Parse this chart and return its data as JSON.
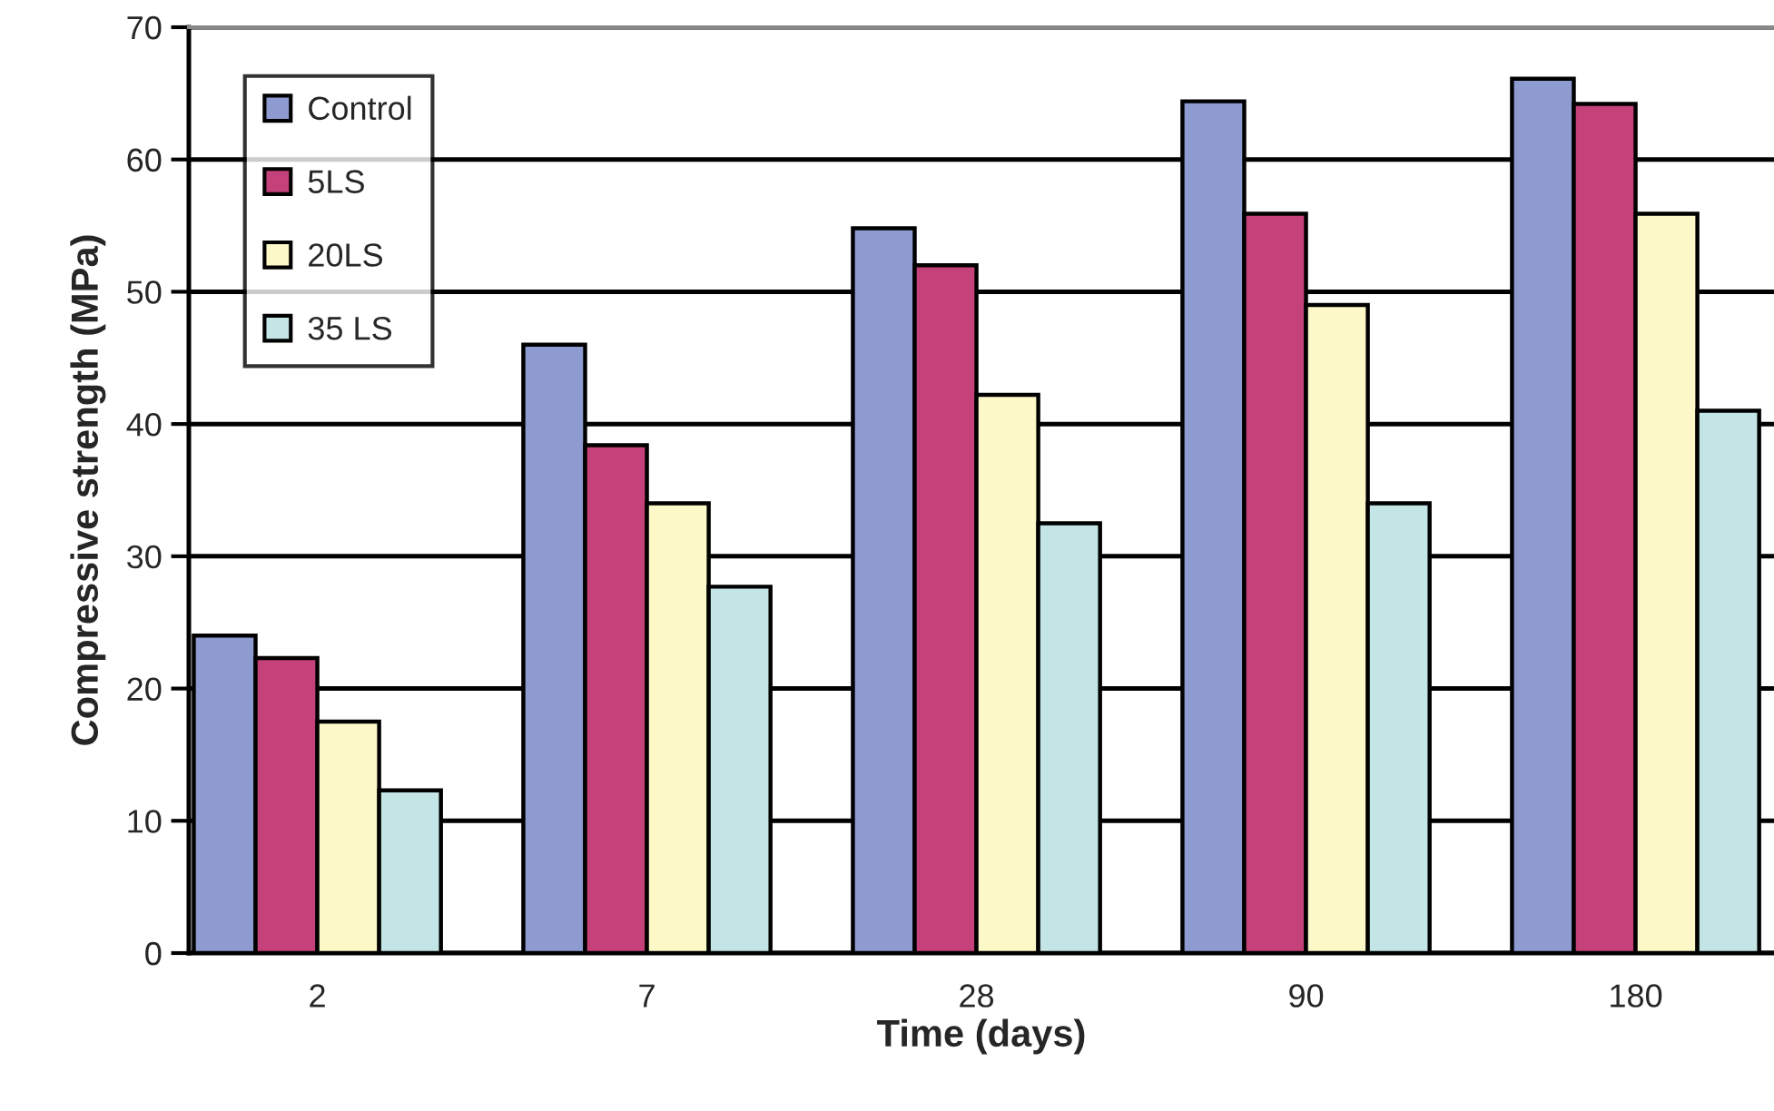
{
  "chart_data": {
    "type": "bar",
    "xlabel": "Time (days)",
    "ylabel": "Compressive strength (MPa)",
    "categories": [
      "2",
      "7",
      "28",
      "90",
      "180"
    ],
    "series": [
      {
        "name": "Control",
        "color": "#8e9bd0",
        "values": [
          24.0,
          46.0,
          54.8,
          64.4,
          66.1
        ]
      },
      {
        "name": "5LS",
        "color": "#c5417a",
        "values": [
          22.3,
          38.4,
          52.0,
          55.9,
          64.2
        ]
      },
      {
        "name": "20LS",
        "color": "#fdf8c8",
        "values": [
          17.5,
          34.0,
          42.2,
          49.0,
          55.9
        ]
      },
      {
        "name": "35 LS",
        "color": "#c3e5e6",
        "values": [
          12.3,
          27.7,
          32.5,
          34.0,
          41.0
        ]
      }
    ],
    "ylim": [
      0,
      70
    ],
    "yticks": [
      0,
      10,
      20,
      30,
      40,
      50,
      60,
      70
    ],
    "grid": "y",
    "legend": "top left"
  }
}
